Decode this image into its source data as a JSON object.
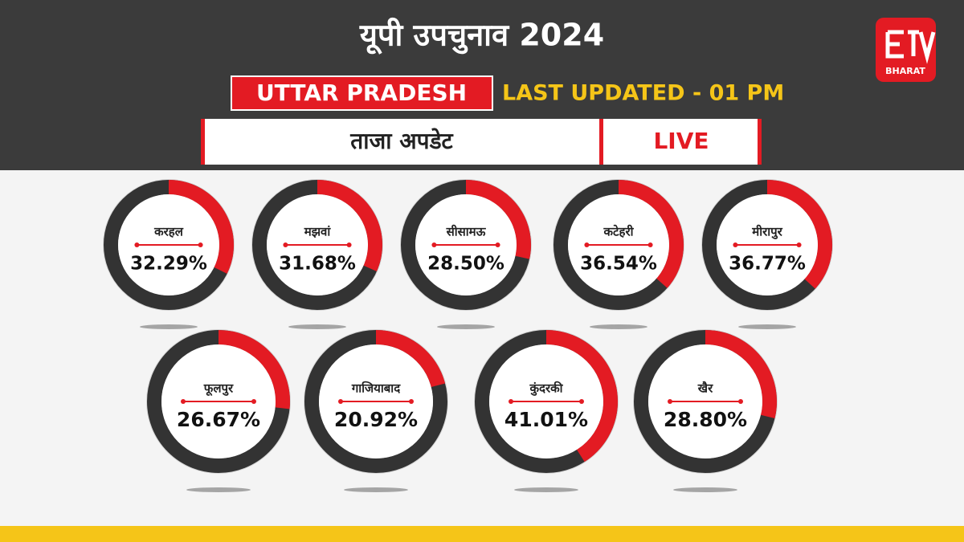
{
  "chart_data": {
    "type": "donut",
    "title": "यूपी उपचुनाव 2024",
    "subtitle": "UTTAR PRADESH",
    "annotations": [
      "LAST UPDATED - 01 PM",
      "ताजा अपडेट",
      "LIVE"
    ],
    "logo": "BHARAT",
    "categories": [
      "करहल",
      "मझवां",
      "सीसामऊ",
      "कटेहरी",
      "मीरापुर",
      "फूलपुर",
      "गाजियाबाद",
      "कुंदरकी",
      "खैर"
    ],
    "values": [
      32.29,
      31.68,
      28.5,
      36.54,
      36.77,
      26.67,
      20.92,
      41.01,
      28.8
    ],
    "value_labels": [
      "32.29%",
      "31.68%",
      "28.50%",
      "36.54%",
      "36.77%",
      "26.67%",
      "20.92%",
      "41.01%",
      "28.80%"
    ],
    "color": "#e31b23",
    "ylim": [
      0,
      100
    ]
  }
}
